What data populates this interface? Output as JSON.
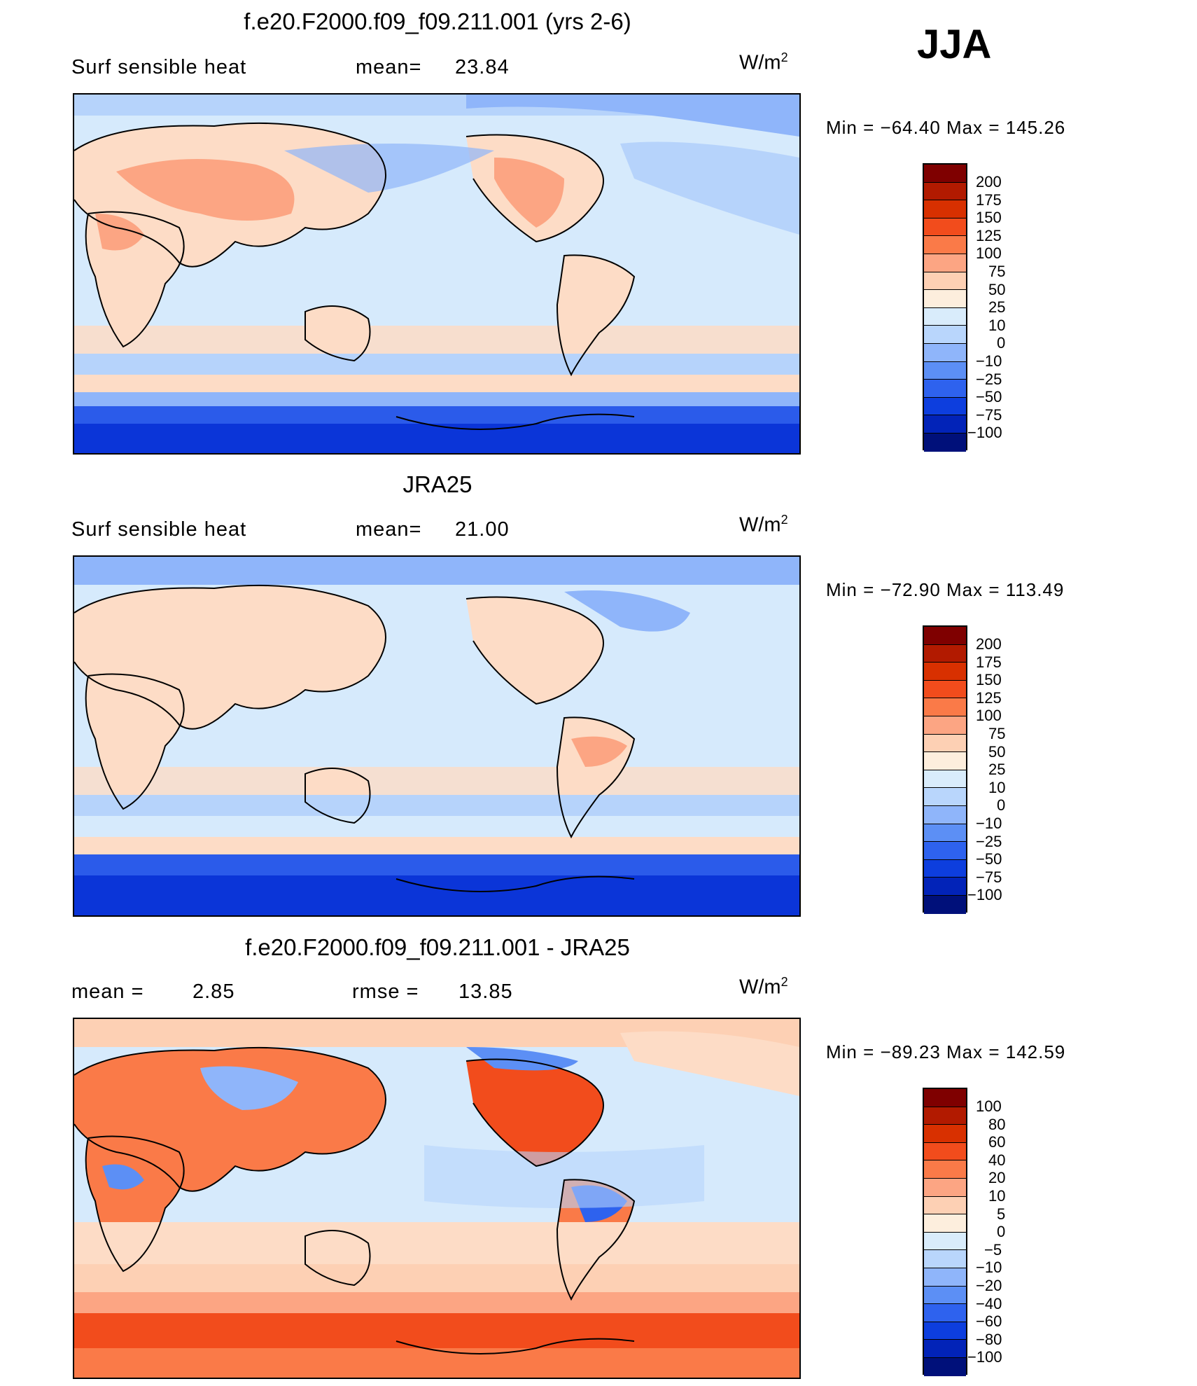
{
  "season": "JJA",
  "panels": [
    {
      "title": "f.e20.F2000.f09_f09.211.001 (yrs 2-6)",
      "left_label": "Surf  sensible  heat",
      "mid_label": "mean=",
      "mid_value": "23.84",
      "units": "W/m",
      "units_sup": "2",
      "minmax": "Min  =  −64.40  Max  =  145.26",
      "colorbar_levels": [
        "200",
        "175",
        "150",
        "125",
        "100",
        "75",
        "50",
        "25",
        "10",
        "0",
        "−10",
        "−25",
        "−50",
        "−75",
        "−100"
      ]
    },
    {
      "title": "JRA25",
      "left_label": "Surf  sensible  heat",
      "mid_label": "mean=",
      "mid_value": "21.00",
      "units": "W/m",
      "units_sup": "2",
      "minmax": "Min  =  −72.90  Max  =  113.49",
      "colorbar_levels": [
        "200",
        "175",
        "150",
        "125",
        "100",
        "75",
        "50",
        "25",
        "10",
        "0",
        "−10",
        "−25",
        "−50",
        "−75",
        "−100"
      ]
    },
    {
      "title": "f.e20.F2000.f09_f09.211.001 - JRA25",
      "left_label": "mean  =",
      "left_value": "2.85",
      "mid_label": "rmse  =",
      "mid_value": "13.85",
      "units": "W/m",
      "units_sup": "2",
      "minmax": "Min  =  −89.23  Max  =  142.59",
      "colorbar_levels": [
        "100",
        "80",
        "60",
        "40",
        "20",
        "10",
        "5",
        "0",
        "−5",
        "−10",
        "−20",
        "−40",
        "−60",
        "−80",
        "−100"
      ]
    }
  ],
  "colorbar_colors": [
    "#7f0000",
    "#b21a00",
    "#d83000",
    "#f24c1c",
    "#fa7a48",
    "#fca583",
    "#fdd0b4",
    "#fdeedd",
    "#d9ecfb",
    "#b9d6fc",
    "#8fb5fa",
    "#5c8ff5",
    "#2e62ee",
    "#0d3ede",
    "#0223b8",
    "#00107a"
  ],
  "land_color": "none",
  "ocean_colors": {
    "neutral": "#d6eafc",
    "warm": "#fddcc6",
    "cool": "#b6d3fb",
    "cold": "#2b5bea",
    "colder": "#0b35d8"
  }
}
